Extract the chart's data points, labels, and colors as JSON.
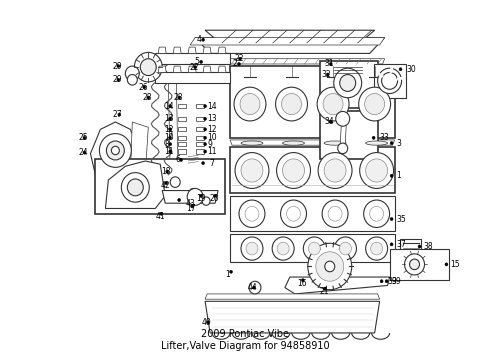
{
  "title": "2009 Pontiac Vibe\nLifter,Valve Diagram for 94858910",
  "bg_color": "#ffffff",
  "text_color": "#000000",
  "fig_width": 4.9,
  "fig_height": 3.6,
  "dpi": 100,
  "title_fontsize": 7,
  "label_fontsize": 5.5,
  "line_color": "#333333",
  "lw_main": 0.8,
  "lw_thin": 0.5,
  "lw_thick": 1.2
}
